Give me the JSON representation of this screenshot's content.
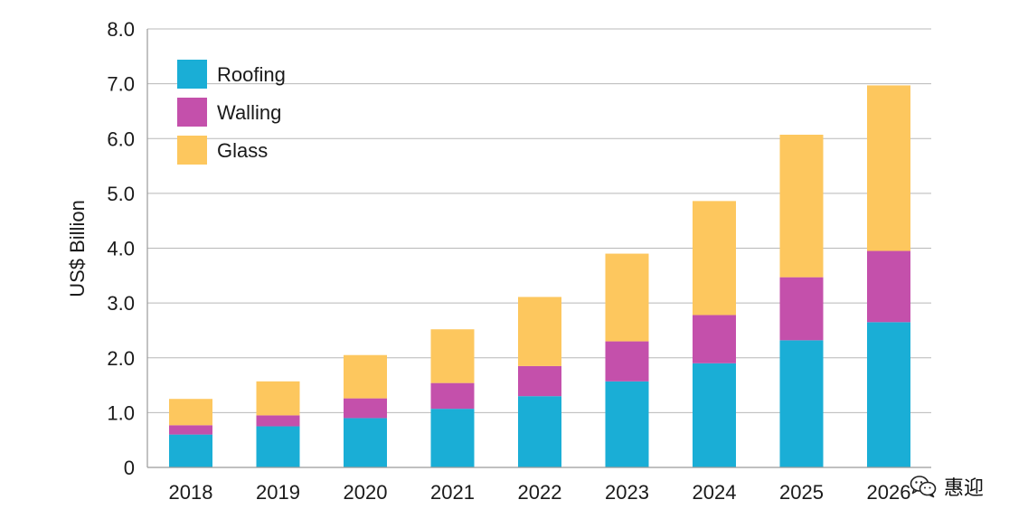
{
  "chart_data": {
    "type": "bar",
    "stacked": true,
    "title": "",
    "xlabel": "",
    "ylabel": "US$ Billion",
    "ylim": [
      0,
      8
    ],
    "yticks": [
      "0",
      "1.0",
      "2.0",
      "3.0",
      "4.0",
      "5.0",
      "6.0",
      "7.0",
      "8.0"
    ],
    "ytick_values": [
      0,
      1,
      2,
      3,
      4,
      5,
      6,
      7,
      8
    ],
    "grid": true,
    "legend_position": "top-left",
    "categories": [
      "2018",
      "2019",
      "2020",
      "2021",
      "2022",
      "2023",
      "2024",
      "2025",
      "2026"
    ],
    "series": [
      {
        "name": "Roofing",
        "color": "#1aaed6",
        "values": [
          0.6,
          0.75,
          0.9,
          1.07,
          1.3,
          1.57,
          1.9,
          2.32,
          2.65
        ]
      },
      {
        "name": "Walling",
        "color": "#c450ab",
        "values": [
          0.17,
          0.2,
          0.36,
          0.47,
          0.55,
          0.73,
          0.88,
          1.15,
          1.3
        ]
      },
      {
        "name": "Glass",
        "color": "#fdc75e",
        "values": [
          0.48,
          0.62,
          0.79,
          0.98,
          1.26,
          1.6,
          2.08,
          2.6,
          3.02
        ]
      }
    ]
  },
  "watermark": {
    "text": "惠迎",
    "icon": "wechat-icon"
  }
}
